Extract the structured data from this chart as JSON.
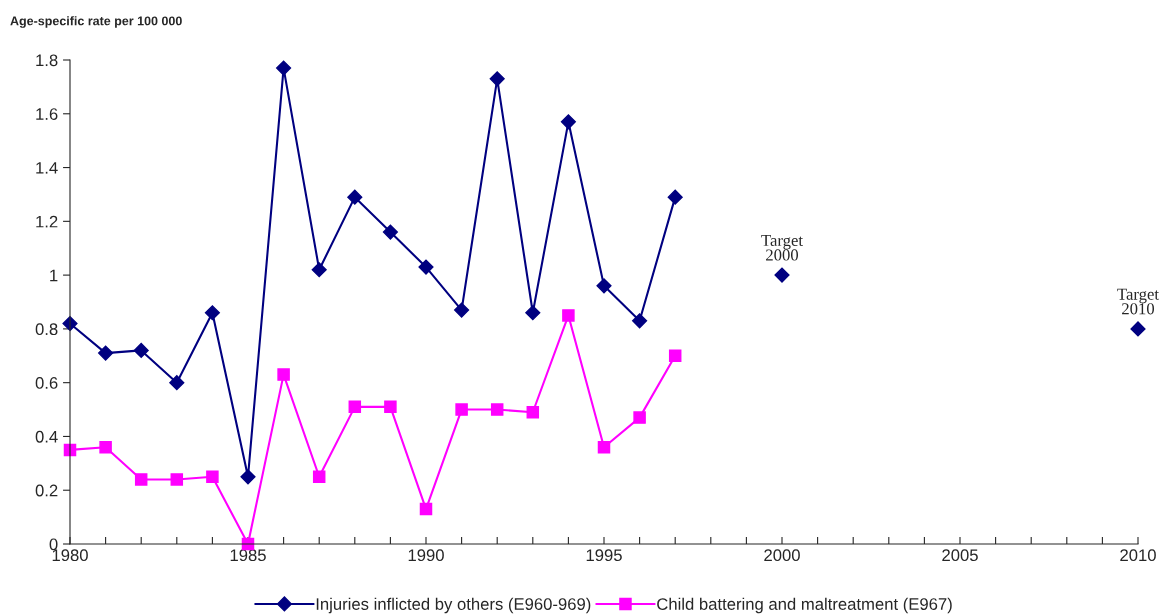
{
  "chart_data": {
    "type": "line",
    "ylabel": "Age-specific rate per 100 000",
    "x": [
      1980,
      1981,
      1982,
      1983,
      1984,
      1985,
      1986,
      1987,
      1988,
      1989,
      1990,
      1991,
      1992,
      1993,
      1994,
      1995,
      1996,
      1997
    ],
    "series": [
      {
        "name": "Injuries inflicted by others (E960-969)",
        "color": "#000080",
        "marker": "diamond",
        "values": [
          0.82,
          0.71,
          0.72,
          0.6,
          0.86,
          0.25,
          1.77,
          1.02,
          1.29,
          1.16,
          1.03,
          0.87,
          1.73,
          0.86,
          1.57,
          0.96,
          0.83,
          1.29
        ]
      },
      {
        "name": "Child battering and maltreatment (E967)",
        "color": "#ff00ff",
        "marker": "square",
        "values": [
          0.35,
          0.36,
          0.24,
          0.24,
          0.25,
          0,
          0.63,
          0.25,
          0.51,
          0.51,
          0.13,
          0.5,
          0.5,
          0.49,
          0.85,
          0.36,
          0.47,
          0.7
        ]
      },
      {
        "type": "scatter",
        "color": "#000080",
        "marker": "diamond",
        "x": [
          2000,
          2010
        ],
        "values": [
          1.0,
          0.8
        ]
      }
    ],
    "annotations": [
      {
        "text": "Target\n2000",
        "x": 2000,
        "y": 1.0
      },
      {
        "text": "Target\n2010",
        "x": 2010,
        "y": 0.8
      }
    ],
    "xlim": [
      1980,
      2010
    ],
    "xticks": [
      1980,
      {
        "value": 1981,
        "label": null
      },
      {
        "value": 1982,
        "label": null
      },
      {
        "value": 1983,
        "label": null
      },
      {
        "value": 1984,
        "label": null
      },
      1985,
      {
        "value": 1986,
        "label": null
      },
      {
        "value": 1987,
        "label": null
      },
      {
        "value": 1988,
        "label": null
      },
      {
        "value": 1989,
        "label": null
      },
      1990,
      {
        "value": 1991,
        "label": null
      },
      {
        "value": 1992,
        "label": null
      },
      {
        "value": 1993,
        "label": null
      },
      {
        "value": 1994,
        "label": null
      },
      1995,
      {
        "value": 1996,
        "label": null
      },
      {
        "value": 1997,
        "label": null
      },
      {
        "value": 1998,
        "label": null
      },
      {
        "value": 1999,
        "label": null
      },
      2000,
      {
        "value": 2001,
        "label": null
      },
      {
        "value": 2002,
        "label": null
      },
      {
        "value": 2003,
        "label": null
      },
      {
        "value": 2004,
        "label": null
      },
      2005,
      {
        "value": 2006,
        "label": null
      },
      {
        "value": 2007,
        "label": null
      },
      {
        "value": 2008,
        "label": null
      },
      {
        "value": 2009,
        "label": null
      },
      2010
    ],
    "ylim": [
      0,
      1.8
    ],
    "yticks": [
      0,
      0.2,
      0.4,
      0.6,
      0.8,
      1,
      1.2,
      1.4,
      1.6,
      1.8
    ],
    "grid": false,
    "legend": "bottom",
    "line_style": "solid"
  }
}
